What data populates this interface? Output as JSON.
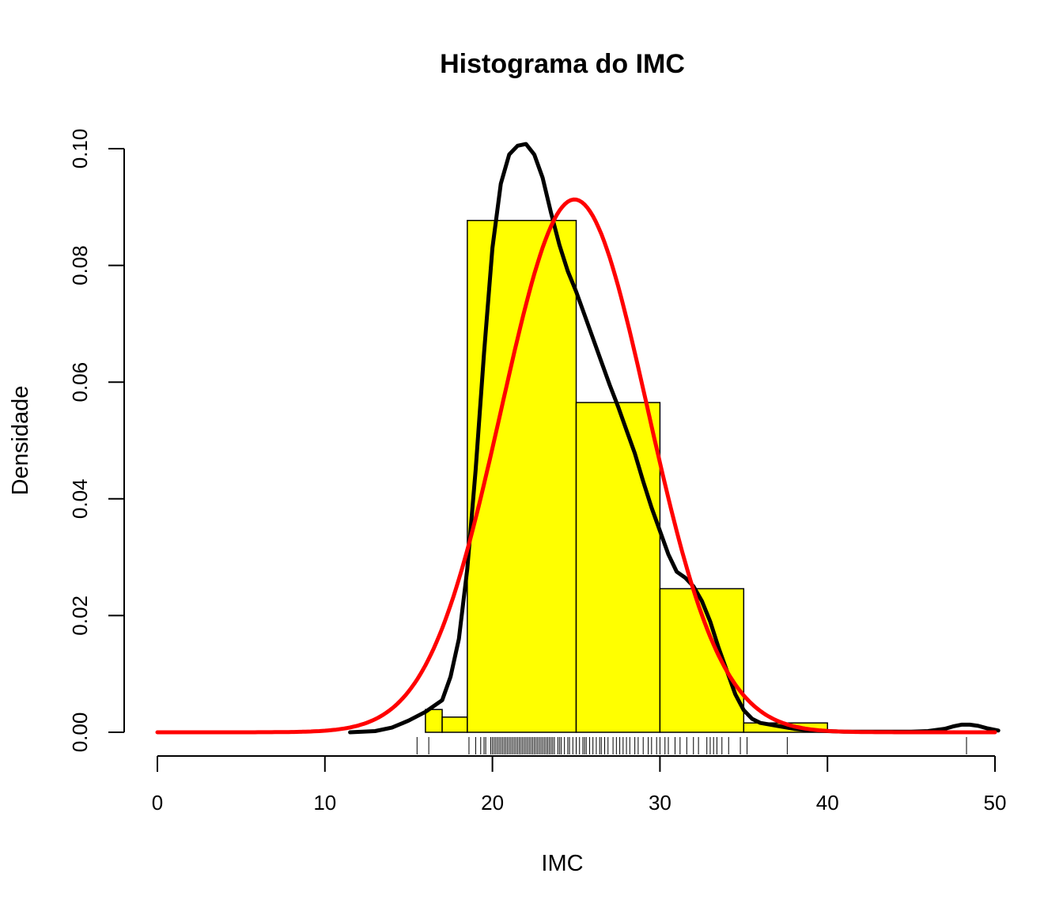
{
  "chart_data": {
    "type": "bar",
    "title": "Histograma do IMC",
    "xlabel": "IMC",
    "ylabel": "Densidade",
    "xlim": [
      0,
      50
    ],
    "ylim": [
      0,
      0.1
    ],
    "x_ticks": [
      "0",
      "10",
      "20",
      "30",
      "40",
      "50"
    ],
    "y_ticks": [
      "0.00",
      "0.02",
      "0.04",
      "0.06",
      "0.08",
      "0.10"
    ],
    "colors": {
      "bars": "#ffff00",
      "density": "#000000",
      "normal": "#ff0000"
    },
    "histogram": [
      {
        "from": 16,
        "to": 17,
        "density": 0.0039
      },
      {
        "from": 17,
        "to": 18.5,
        "density": 0.0026
      },
      {
        "from": 18.5,
        "to": 25,
        "density": 0.0877
      },
      {
        "from": 25,
        "to": 30,
        "density": 0.0565
      },
      {
        "from": 30,
        "to": 35,
        "density": 0.0246
      },
      {
        "from": 35,
        "to": 40,
        "density": 0.0016
      },
      {
        "from": 40,
        "to": 50,
        "density": 0.0002
      }
    ],
    "normal_curve": {
      "mean": 24.9,
      "sd": 4.37
    },
    "density_curve": {
      "x": [
        11.5,
        13,
        14,
        15,
        16,
        17,
        17.5,
        18,
        18.5,
        19,
        19.5,
        20,
        20.5,
        21,
        21.5,
        22,
        22.5,
        23,
        23.5,
        24,
        24.5,
        25,
        25.5,
        26,
        26.5,
        27,
        27.5,
        28,
        28.5,
        29,
        29.5,
        30,
        30.5,
        31,
        31.5,
        32,
        32.5,
        33,
        33.5,
        34,
        34.5,
        35,
        35.5,
        36,
        37,
        38,
        39,
        40,
        41,
        43,
        45,
        46,
        47,
        47.5,
        48,
        48.5,
        49,
        49.5,
        50.2
      ],
      "y": [
        0,
        0.0002,
        0.0008,
        0.002,
        0.0035,
        0.0055,
        0.0095,
        0.016,
        0.028,
        0.045,
        0.065,
        0.083,
        0.094,
        0.099,
        0.1005,
        0.1008,
        0.099,
        0.095,
        0.089,
        0.0835,
        0.079,
        0.0755,
        0.0715,
        0.0675,
        0.0635,
        0.0595,
        0.0558,
        0.0518,
        0.0478,
        0.043,
        0.0385,
        0.0345,
        0.0305,
        0.0275,
        0.0265,
        0.025,
        0.0225,
        0.019,
        0.0145,
        0.0105,
        0.0065,
        0.0038,
        0.0023,
        0.0016,
        0.0011,
        0.0006,
        0.0003,
        0.0002,
        0.0001,
        0.0001,
        0.0001,
        0.0002,
        0.0006,
        0.001,
        0.0013,
        0.0013,
        0.0011,
        0.0007,
        0.0003
      ]
    },
    "rug": [
      15.5,
      16.2,
      18.6,
      19.0,
      19.3,
      19.5,
      19.6,
      19.9,
      20.0,
      20.1,
      20.2,
      20.3,
      20.4,
      20.5,
      20.6,
      20.7,
      20.8,
      20.9,
      21.0,
      21.1,
      21.2,
      21.3,
      21.4,
      21.5,
      21.6,
      21.7,
      21.8,
      21.9,
      22.0,
      22.1,
      22.2,
      22.3,
      22.4,
      22.5,
      22.6,
      22.7,
      22.8,
      22.9,
      23.0,
      23.1,
      23.2,
      23.3,
      23.4,
      23.5,
      23.6,
      23.7,
      23.9,
      24.0,
      24.1,
      24.3,
      24.5,
      24.6,
      24.8,
      25.0,
      25.2,
      25.4,
      25.5,
      25.6,
      25.8,
      26.0,
      26.2,
      26.4,
      26.5,
      26.7,
      26.9,
      27.2,
      27.4,
      27.6,
      27.8,
      28.0,
      28.2,
      28.5,
      28.7,
      29.0,
      29.3,
      29.5,
      29.8,
      30.0,
      30.3,
      30.5,
      30.9,
      31.2,
      31.6,
      32.0,
      32.3,
      32.8,
      33.0,
      33.2,
      33.4,
      33.7,
      34.1,
      34.8,
      35.2,
      37.6,
      48.3
    ]
  }
}
